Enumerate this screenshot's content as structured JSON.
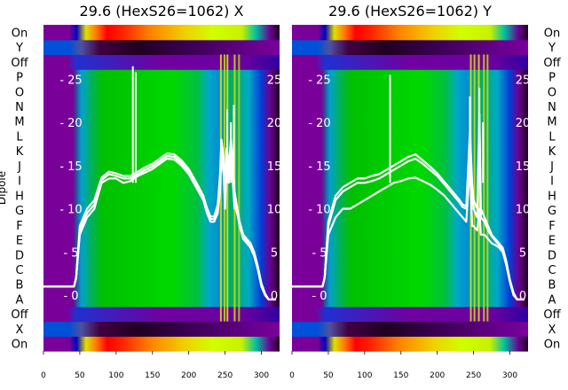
{
  "chart_data": [
    {
      "type": "heatmap",
      "title": "29.6 (HexS26=1062) X",
      "ylabel": "Dipole",
      "row_labels_bottom_to_top": [
        "On",
        "X",
        "Off",
        "A",
        "B",
        "C",
        "D",
        "E",
        "F",
        "G",
        "H",
        "I",
        "J",
        "K",
        "L",
        "M",
        "N",
        "O",
        "P",
        "Off",
        "Y",
        "On"
      ],
      "x_ticks": [
        0,
        50,
        100,
        150,
        200,
        250,
        300
      ],
      "x_range": [
        0,
        325
      ],
      "overlay_ticks": [
        0,
        5,
        10,
        15,
        20,
        25
      ],
      "overlay_ylim": [
        -2,
        27
      ],
      "colormap": "nipy_spectral",
      "overlay_line_color": "#ffffff",
      "overlay_traces": [
        {
          "x": [
            0,
            42,
            45,
            50,
            60,
            70,
            80,
            90,
            100,
            110,
            120,
            130,
            140,
            150,
            160,
            170,
            180,
            190,
            200,
            210,
            220,
            225,
            230,
            235,
            240,
            243,
            245,
            248,
            250,
            252,
            255,
            258,
            260,
            263,
            265,
            268,
            270,
            275,
            280,
            285,
            290,
            295,
            300,
            305,
            310,
            320
          ],
          "y": [
            1,
            1,
            2,
            7,
            9,
            10,
            13,
            13.5,
            13.5,
            13,
            13.2,
            13.8,
            14.2,
            14.6,
            15.2,
            15.8,
            15.7,
            15,
            14,
            12.5,
            11,
            9.5,
            8.5,
            8.5,
            9.5,
            12,
            16,
            14,
            10,
            15,
            13,
            16,
            14,
            10,
            10,
            9,
            8,
            6.5,
            6,
            5.5,
            4.5,
            3,
            1,
            0,
            -0.5,
            -0.5
          ]
        },
        {
          "x": [
            0,
            42,
            45,
            50,
            60,
            70,
            80,
            90,
            100,
            110,
            120,
            130,
            140,
            150,
            160,
            170,
            180,
            190,
            200,
            210,
            220,
            225,
            230,
            235,
            240,
            243,
            245,
            248,
            250,
            252,
            255,
            258,
            260,
            263,
            265,
            268,
            270,
            275,
            280,
            285,
            290,
            295,
            300,
            305,
            310,
            320
          ],
          "y": [
            1,
            1,
            2,
            7.5,
            9.5,
            10.5,
            13.3,
            14,
            13.8,
            13.5,
            13.5,
            14,
            14.5,
            14.9,
            15.5,
            16.1,
            16,
            15.3,
            14.3,
            12.8,
            11.2,
            9.8,
            8.8,
            8.8,
            10,
            13,
            17,
            15,
            11,
            16,
            14,
            17,
            15,
            11,
            10.5,
            9.2,
            8.2,
            6.7,
            6.2,
            5.7,
            4.7,
            3.2,
            1.2,
            0.1,
            -0.5,
            -0.5
          ]
        },
        {
          "x": [
            0,
            42,
            45,
            50,
            60,
            70,
            80,
            90,
            100,
            110,
            120,
            130,
            140,
            150,
            160,
            170,
            180,
            190,
            200,
            210,
            220,
            225,
            230,
            235,
            240,
            243,
            245,
            248,
            250,
            252,
            255,
            258,
            260,
            263,
            265,
            268,
            270,
            275,
            280,
            285,
            290,
            295,
            300,
            305,
            310,
            320
          ],
          "y": [
            1,
            1,
            2,
            8,
            10,
            11,
            13.6,
            14.3,
            14.1,
            13.8,
            13.8,
            14.3,
            14.8,
            15.2,
            15.8,
            16.4,
            16.3,
            15.6,
            14.6,
            13.1,
            11.5,
            10.1,
            9.1,
            9.1,
            10.5,
            14,
            18,
            16,
            12,
            17,
            15,
            18,
            16,
            12,
            11,
            9.5,
            8.5,
            7,
            6.5,
            6,
            5,
            3.4,
            1.4,
            0.2,
            -0.5,
            -0.5
          ]
        }
      ],
      "overlay_spikes": [
        {
          "x": 123,
          "y": 26.5
        },
        {
          "x": 127,
          "y": 25.8
        },
        {
          "x": 253,
          "y": 21.5
        },
        {
          "x": 258,
          "y": 20
        },
        {
          "x": 262,
          "y": 22
        }
      ]
    },
    {
      "type": "heatmap",
      "title": "29.6 (HexS26=1062) Y",
      "ylabel": "",
      "row_labels_bottom_to_top": [
        "On",
        "X",
        "Off",
        "A",
        "B",
        "C",
        "D",
        "E",
        "F",
        "G",
        "H",
        "I",
        "J",
        "K",
        "L",
        "M",
        "N",
        "O",
        "P",
        "Off",
        "Y",
        "On"
      ],
      "x_ticks": [
        0,
        50,
        100,
        150,
        200,
        250,
        300
      ],
      "x_range": [
        0,
        325
      ],
      "overlay_ticks": [
        0,
        5,
        10,
        15,
        20,
        25
      ],
      "overlay_ylim": [
        -2,
        27
      ],
      "colormap": "nipy_spectral",
      "overlay_line_color": "#ffffff",
      "overlay_traces": [
        {
          "x": [
            0,
            42,
            45,
            50,
            60,
            70,
            80,
            90,
            100,
            110,
            120,
            130,
            140,
            150,
            160,
            170,
            180,
            190,
            200,
            210,
            220,
            230,
            235,
            240,
            245,
            248,
            250,
            255,
            258,
            260,
            265,
            270,
            275,
            280,
            285,
            290,
            295,
            300,
            305,
            310,
            320
          ],
          "y": [
            1,
            1,
            2,
            7,
            9,
            10,
            10,
            10.5,
            11,
            11.5,
            12,
            12.5,
            13,
            13.2,
            13.5,
            13.6,
            13.2,
            12.8,
            12.2,
            11.5,
            10.5,
            9.5,
            9,
            8.5,
            15,
            8,
            8,
            7.5,
            10,
            7,
            7,
            6.5,
            6,
            5.8,
            5.5,
            5,
            3.5,
            1.5,
            0,
            -0.5,
            -0.5
          ]
        },
        {
          "x": [
            0,
            42,
            45,
            50,
            60,
            70,
            80,
            90,
            100,
            110,
            120,
            130,
            140,
            150,
            160,
            170,
            180,
            190,
            200,
            210,
            220,
            230,
            235,
            240,
            245,
            248,
            250,
            255,
            258,
            260,
            265,
            270,
            275,
            280,
            285,
            290,
            295,
            300,
            305,
            310,
            320
          ],
          "y": [
            1,
            1,
            2,
            8,
            11,
            12,
            12.5,
            13,
            13,
            13.2,
            13.5,
            14,
            14.5,
            15,
            15.5,
            15.8,
            15.2,
            14.5,
            13.8,
            12.8,
            11.8,
            10.8,
            10.2,
            10,
            18,
            12,
            10,
            9,
            20,
            9,
            8.5,
            7.5,
            6.8,
            6.3,
            5.8,
            5.3,
            3.8,
            1.7,
            0.2,
            -0.5,
            -0.5
          ]
        },
        {
          "x": [
            0,
            42,
            45,
            50,
            60,
            70,
            80,
            90,
            100,
            110,
            120,
            130,
            140,
            150,
            160,
            170,
            180,
            190,
            200,
            210,
            220,
            230,
            235,
            240,
            245,
            248,
            250,
            255,
            258,
            260,
            265,
            270,
            275,
            280,
            285,
            290,
            295,
            300,
            305,
            310,
            320
          ],
          "y": [
            1,
            1,
            2,
            8.5,
            11.5,
            12.5,
            13,
            13.5,
            13.5,
            13.8,
            14,
            14.5,
            15,
            15.5,
            16,
            16.3,
            15.6,
            14.9,
            14.1,
            13.1,
            12.1,
            11.1,
            10.5,
            10.3,
            19,
            13,
            11,
            10,
            21,
            10,
            9,
            8,
            7,
            6.5,
            6,
            5.5,
            4,
            1.8,
            0.3,
            -0.5,
            -0.5
          ]
        }
      ],
      "overlay_spikes": [
        {
          "x": 135,
          "y": 25.5
        },
        {
          "x": 245,
          "y": 23
        },
        {
          "x": 258,
          "y": 24
        },
        {
          "x": 263,
          "y": 20
        }
      ]
    }
  ]
}
